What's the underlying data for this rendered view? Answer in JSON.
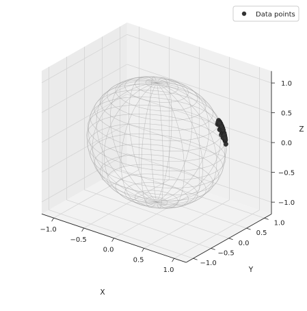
{
  "chart_data": {
    "type": "scatter",
    "projection": "3d",
    "xlabel": "X",
    "ylabel": "Y",
    "zlabel": "Z",
    "xlim": [
      -1.2,
      1.2
    ],
    "ylim": [
      -1.2,
      1.2
    ],
    "zlim": [
      -1.2,
      1.2
    ],
    "xticks": [
      "−1.0",
      "−0.5",
      "0.0",
      "0.5",
      "1.0"
    ],
    "yticks": [
      "−1.0",
      "−0.5",
      "0.0",
      "0.5",
      "1.0"
    ],
    "zticks": [
      "−1.0",
      "−0.5",
      "0.0",
      "0.5",
      "1.0"
    ],
    "grid": true,
    "wireframe_sphere": {
      "radius": 1.0,
      "color": "#9a9a9a"
    },
    "legend": {
      "placement": "top-right",
      "entries": [
        "Data points"
      ]
    },
    "series": [
      {
        "name": "Data points",
        "color": "#333333",
        "points": [
          [
            0.7,
            0.69,
            0.18
          ],
          [
            0.78,
            0.55,
            0.29
          ],
          [
            0.62,
            0.78,
            0.1
          ],
          [
            0.85,
            0.45,
            0.27
          ],
          [
            0.55,
            0.8,
            0.24
          ],
          [
            0.72,
            0.62,
            0.31
          ],
          [
            0.66,
            0.74,
            0.14
          ],
          [
            0.81,
            0.52,
            0.26
          ],
          [
            0.58,
            0.77,
            0.27
          ],
          [
            0.75,
            0.64,
            0.17
          ],
          [
            0.69,
            0.67,
            0.27
          ],
          [
            0.83,
            0.49,
            0.27
          ],
          [
            0.61,
            0.72,
            0.33
          ],
          [
            0.77,
            0.6,
            0.22
          ],
          [
            0.64,
            0.76,
            0.12
          ],
          [
            0.73,
            0.58,
            0.36
          ],
          [
            0.88,
            0.4,
            0.25
          ],
          [
            0.52,
            0.83,
            0.2
          ],
          [
            0.68,
            0.7,
            0.22
          ],
          [
            0.8,
            0.56,
            0.21
          ],
          [
            0.59,
            0.74,
            0.32
          ],
          [
            0.71,
            0.66,
            0.23
          ],
          [
            0.86,
            0.47,
            0.2
          ],
          [
            0.63,
            0.75,
            0.21
          ],
          [
            0.76,
            0.59,
            0.27
          ],
          [
            0.67,
            0.72,
            0.19
          ],
          [
            0.79,
            0.5,
            0.35
          ],
          [
            0.57,
            0.79,
            0.22
          ],
          [
            0.74,
            0.61,
            0.29
          ],
          [
            0.82,
            0.54,
            0.19
          ],
          [
            0.65,
            0.68,
            0.34
          ],
          [
            0.7,
            0.71,
            0.06
          ],
          [
            0.84,
            0.43,
            0.33
          ],
          [
            0.6,
            0.78,
            0.18
          ],
          [
            0.78,
            0.62,
            0.09
          ],
          [
            0.54,
            0.81,
            0.23
          ],
          [
            0.72,
            0.64,
            0.26
          ],
          [
            0.87,
            0.44,
            0.21
          ],
          [
            0.66,
            0.73,
            0.16
          ],
          [
            0.81,
            0.48,
            0.33
          ],
          [
            0.62,
            0.71,
            0.33
          ],
          [
            0.75,
            0.57,
            0.34
          ],
          [
            0.69,
            0.72,
            0.08
          ],
          [
            0.83,
            0.51,
            0.22
          ],
          [
            0.58,
            0.76,
            0.29
          ],
          [
            0.73,
            0.66,
            0.16
          ],
          [
            0.77,
            0.55,
            0.31
          ],
          [
            0.64,
            0.74,
            0.21
          ],
          [
            0.8,
            0.58,
            0.15
          ],
          [
            0.68,
            0.65,
            0.33
          ],
          [
            0.85,
            0.5,
            0.17
          ],
          [
            0.56,
            0.82,
            0.13
          ],
          [
            0.71,
            0.6,
            0.36
          ],
          [
            0.79,
            0.53,
            0.3
          ],
          [
            0.61,
            0.77,
            0.18
          ],
          [
            0.74,
            0.67,
            0.05
          ],
          [
            0.67,
            0.69,
            0.26
          ],
          [
            0.82,
            0.46,
            0.33
          ],
          [
            0.6,
            0.8,
            0.06
          ],
          [
            0.76,
            0.63,
            0.16
          ],
          [
            0.7,
            0.62,
            0.35
          ],
          [
            0.86,
            0.41,
            0.3
          ],
          [
            0.63,
            0.73,
            0.26
          ],
          [
            0.78,
            0.6,
            0.18
          ],
          [
            0.66,
            0.75,
            0.05
          ],
          [
            0.81,
            0.53,
            0.25
          ],
          [
            0.59,
            0.75,
            0.3
          ],
          [
            0.73,
            0.63,
            0.27
          ],
          [
            0.84,
            0.47,
            0.26
          ],
          [
            0.57,
            0.81,
            0.13
          ],
          [
            0.72,
            0.68,
            0.13
          ],
          [
            0.79,
            0.57,
            0.22
          ],
          [
            0.65,
            0.71,
            0.28
          ],
          [
            0.88,
            0.44,
            0.17
          ],
          [
            0.62,
            0.76,
            0.19
          ],
          [
            0.75,
            0.61,
            0.25
          ],
          [
            0.69,
            0.64,
            0.33
          ],
          [
            0.83,
            0.55,
            0.07
          ],
          [
            0.6,
            0.73,
            0.33
          ],
          [
            0.77,
            0.58,
            0.27
          ],
          [
            0.68,
            0.73,
            0.06
          ],
          [
            0.8,
            0.51,
            0.31
          ],
          [
            0.64,
            0.7,
            0.32
          ],
          [
            0.74,
            0.65,
            0.18
          ],
          [
            0.86,
            0.48,
            0.17
          ],
          [
            0.71,
            0.69,
            0.14
          ],
          [
            0.58,
            0.78,
            0.23
          ],
          [
            0.76,
            0.56,
            0.33
          ],
          [
            0.67,
            0.74,
            0.05
          ],
          [
            0.82,
            0.52,
            0.24
          ],
          [
            0.63,
            0.72,
            0.29
          ],
          [
            0.79,
            0.61,
            0.03
          ],
          [
            0.7,
            0.66,
            0.26
          ],
          [
            0.85,
            0.46,
            0.25
          ],
          [
            0.55,
            0.79,
            0.26
          ],
          [
            0.73,
            0.59,
            0.34
          ],
          [
            0.66,
            0.7,
            0.26
          ],
          [
            0.81,
            0.57,
            0.13
          ],
          [
            0.61,
            0.74,
            0.28
          ],
          [
            0.77,
            0.62,
            0.13
          ]
        ]
      }
    ]
  }
}
